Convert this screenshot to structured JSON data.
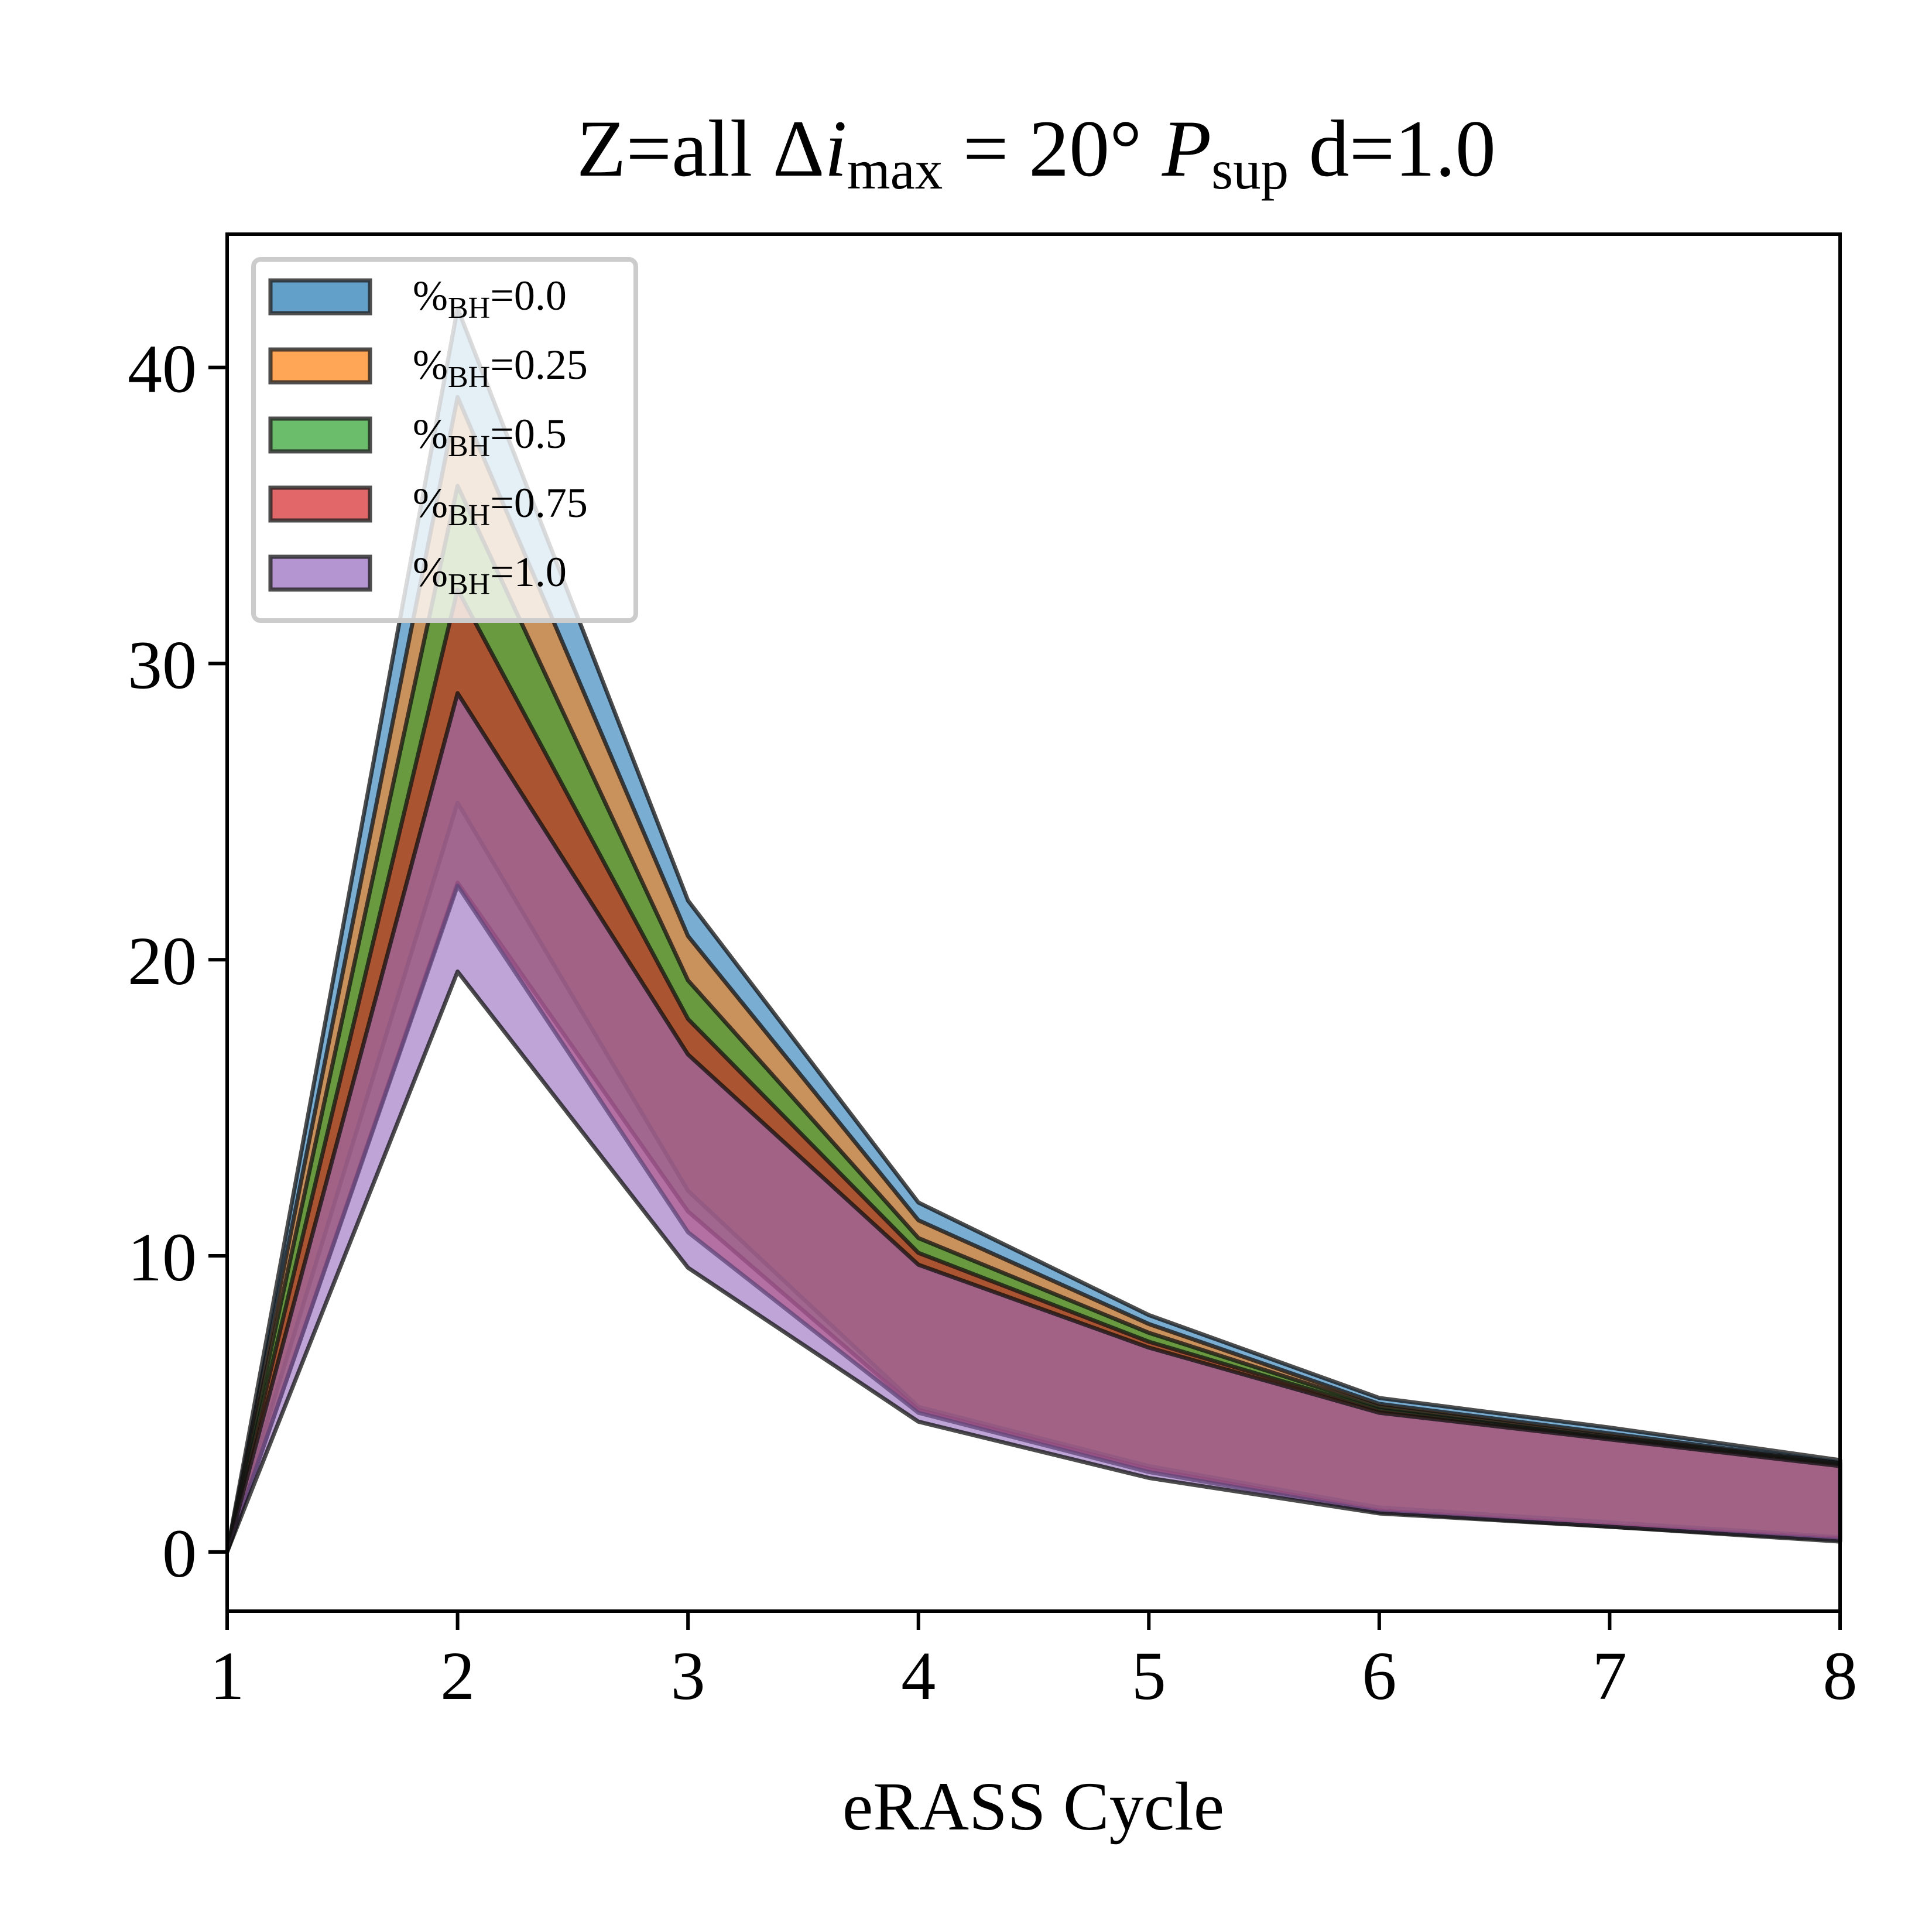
{
  "chart_data": {
    "type": "area",
    "title": {
      "parts": [
        {
          "text": "Z=all Δ",
          "style": "normal"
        },
        {
          "text": "i",
          "style": "italic"
        },
        {
          "text": "max",
          "style": "sub"
        },
        {
          "text": " = 20° ",
          "style": "normal"
        },
        {
          "text": "P",
          "style": "italic"
        },
        {
          "text": "sup",
          "style": "sub"
        },
        {
          "text": " d=1.0",
          "style": "normal"
        }
      ]
    },
    "xlabel": "eRASS Cycle",
    "ylabel": "",
    "xlim": [
      1,
      8
    ],
    "ylim": [
      -2,
      44.5
    ],
    "xticks": [
      1,
      2,
      3,
      4,
      5,
      6,
      7,
      8
    ],
    "yticks": [
      0,
      10,
      20,
      30,
      40
    ],
    "grid": false,
    "legend": {
      "placement": "upper-left",
      "entries": [
        {
          "prefix": "%",
          "sub": "BH",
          "value": "=0.0"
        },
        {
          "prefix": "%",
          "sub": "BH",
          "value": "=0.25"
        },
        {
          "prefix": "%",
          "sub": "BH",
          "value": "=0.5"
        },
        {
          "prefix": "%",
          "sub": "BH",
          "value": "=0.75"
        },
        {
          "prefix": "%",
          "sub": "BH",
          "value": "=1.0"
        }
      ]
    },
    "x": [
      1,
      2,
      3,
      4,
      5,
      6,
      7,
      8
    ],
    "series": [
      {
        "name": "%BH=0.0",
        "color": "#1f77b4",
        "upper": [
          0,
          42.0,
          22.0,
          11.8,
          8.0,
          5.2,
          4.2,
          3.1
        ],
        "lower": [
          0,
          29.0,
          16.8,
          9.7,
          6.9,
          4.7,
          3.8,
          2.9
        ]
      },
      {
        "name": "%BH=0.25",
        "color": "#ff7f0e",
        "upper": [
          0,
          39.0,
          20.8,
          11.2,
          7.7,
          5.0,
          4.0,
          3.0
        ],
        "lower": [
          0,
          25.3,
          12.2,
          4.9,
          2.9,
          1.5,
          1.0,
          0.5
        ]
      },
      {
        "name": "%BH=0.5",
        "color": "#2ca02c",
        "upper": [
          0,
          36.0,
          19.3,
          10.6,
          7.4,
          4.9,
          3.9,
          3.0
        ],
        "lower": [
          0,
          22.6,
          11.5,
          4.8,
          2.8,
          1.4,
          0.9,
          0.45
        ]
      },
      {
        "name": "%BH=0.75",
        "color": "#d62728",
        "upper": [
          0,
          32.5,
          18.0,
          10.1,
          7.1,
          4.8,
          3.85,
          2.95
        ],
        "lower": [
          0,
          22.5,
          10.8,
          4.7,
          2.7,
          1.35,
          0.85,
          0.4
        ]
      },
      {
        "name": "%BH=1.0",
        "color": "#9467bd",
        "upper": [
          0,
          29.0,
          16.8,
          9.7,
          6.9,
          4.7,
          3.8,
          2.9
        ],
        "lower": [
          0,
          19.6,
          9.6,
          4.4,
          2.5,
          1.3,
          0.85,
          0.35
        ]
      }
    ]
  }
}
